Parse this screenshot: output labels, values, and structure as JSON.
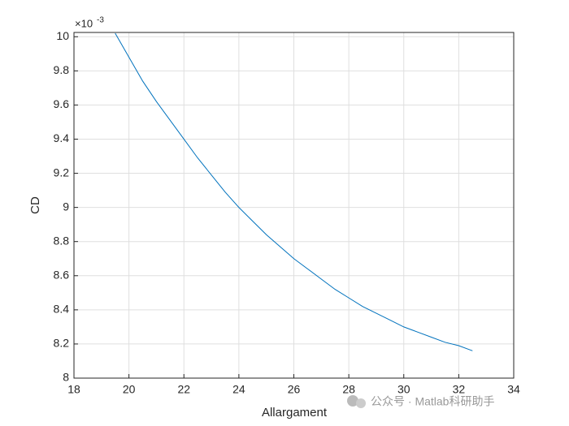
{
  "chart_data": {
    "type": "line",
    "x_label": "Allargament",
    "y_label": "CD",
    "y_exponent_base": "×10",
    "y_exponent": "-3",
    "x": [
      19.5,
      20,
      20.5,
      21,
      21.5,
      22,
      22.5,
      23,
      23.5,
      24,
      24.5,
      25,
      25.5,
      26,
      26.5,
      27,
      27.5,
      28,
      28.5,
      29,
      29.5,
      30,
      30.5,
      31,
      31.5,
      32,
      32.5
    ],
    "series": [
      {
        "color": "#0072bd",
        "values": [
          10.02,
          9.88,
          9.74,
          9.62,
          9.51,
          9.4,
          9.29,
          9.19,
          9.09,
          9.0,
          8.92,
          8.84,
          8.77,
          8.7,
          8.64,
          8.58,
          8.52,
          8.47,
          8.42,
          8.38,
          8.34,
          8.3,
          8.27,
          8.24,
          8.21,
          8.19,
          8.16
        ]
      }
    ],
    "xlim": [
      18,
      34
    ],
    "xticks": [
      18,
      20,
      22,
      24,
      26,
      28,
      30,
      32,
      34
    ],
    "ylim": [
      8,
      10.025
    ],
    "yticks": [
      8,
      8.2,
      8.4,
      8.6,
      8.8,
      9,
      9.2,
      9.4,
      9.6,
      9.8,
      10
    ],
    "grid": true
  },
  "watermark": "公众号 · Matlab科研助手"
}
